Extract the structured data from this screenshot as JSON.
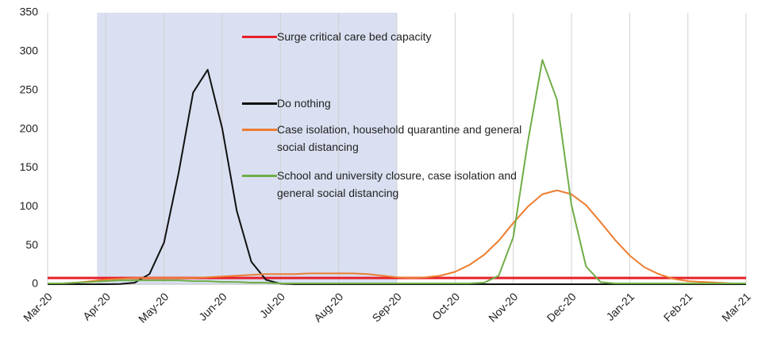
{
  "chart_data": {
    "type": "line",
    "x": [
      0,
      0.25,
      0.5,
      0.75,
      1,
      1.25,
      1.5,
      1.75,
      2,
      2.25,
      2.5,
      2.75,
      3,
      3.25,
      3.5,
      3.75,
      4,
      4.25,
      4.5,
      4.75,
      5,
      5.25,
      5.5,
      5.75,
      6,
      6.25,
      6.5,
      6.75,
      7,
      7.25,
      7.5,
      7.75,
      8,
      8.25,
      8.5,
      8.75,
      9,
      9.25,
      9.5,
      9.75,
      10,
      10.25,
      10.5,
      10.75,
      11,
      11.25,
      11.5,
      11.75,
      12
    ],
    "series": [
      {
        "name": "Surge critical care bed capacity",
        "color": "#e8202a",
        "values": [
          8,
          8,
          8,
          8,
          8,
          8,
          8,
          8,
          8,
          8,
          8,
          8,
          8,
          8,
          8,
          8,
          8,
          8,
          8,
          8,
          8,
          8,
          8,
          8,
          8,
          8,
          8,
          8,
          8,
          8,
          8,
          8,
          8,
          8,
          8,
          8,
          8,
          8,
          8,
          8,
          8,
          8,
          8,
          8,
          8,
          8,
          8,
          8,
          8
        ]
      },
      {
        "name": "Do nothing",
        "color": "#111111",
        "values": [
          0,
          0,
          0,
          0,
          0,
          0.2,
          2.1,
          13.1,
          53.8,
          143.3,
          247.1,
          276.5,
          200.7,
          94.5,
          28.9,
          5.7,
          0.7,
          0,
          0,
          0,
          0,
          0,
          0,
          0,
          0,
          0,
          0,
          0,
          0,
          0,
          0,
          0,
          0,
          0,
          0,
          0,
          0,
          0,
          0,
          0,
          0,
          0,
          0,
          0,
          0,
          0,
          0,
          0,
          0
        ]
      },
      {
        "name": "Case isolation, household quarantine and general social distancing",
        "color": "#ed7d31",
        "values": [
          1,
          1,
          2,
          4,
          6,
          7,
          8,
          8,
          8,
          8,
          8,
          9,
          10,
          11,
          12,
          13,
          13,
          13,
          14,
          14,
          14,
          14,
          13,
          11,
          9,
          8,
          9,
          11,
          16,
          25,
          38,
          56,
          79,
          100,
          116,
          121,
          116,
          102,
          80,
          57,
          37,
          22,
          13,
          7,
          4,
          3,
          2,
          1,
          1
        ]
      },
      {
        "name": "School and university closure, case isolation and general social distancing",
        "color": "#70ad47",
        "values": [
          1,
          1,
          2,
          3,
          4,
          5,
          5,
          5,
          5,
          5,
          4,
          4,
          3,
          3,
          2,
          2,
          1,
          1,
          1,
          1,
          1,
          1,
          1,
          1,
          1,
          1,
          1,
          1,
          1,
          1,
          2,
          11,
          60.7,
          183.4,
          289.2,
          238,
          102.1,
          22.9,
          2.7,
          1,
          1,
          1,
          1,
          1,
          1,
          1,
          1,
          1,
          1
        ]
      }
    ],
    "xlim": [
      0,
      12
    ],
    "xticks": [
      {
        "value": 0,
        "label": "Mar-20"
      },
      {
        "value": 1,
        "label": "Apr-20"
      },
      {
        "value": 2,
        "label": "May-20"
      },
      {
        "value": 3,
        "label": "Jun-20"
      },
      {
        "value": 4,
        "label": "Jul-20"
      },
      {
        "value": 5,
        "label": "Aug-20"
      },
      {
        "value": 6,
        "label": "Sep-20"
      },
      {
        "value": 7,
        "label": "Oct-20"
      },
      {
        "value": 8,
        "label": "Nov-20"
      },
      {
        "value": 9,
        "label": "Dec-20"
      },
      {
        "value": 10,
        "label": "Jan-21"
      },
      {
        "value": 11,
        "label": "Feb-21"
      },
      {
        "value": 12,
        "label": "Mar-21"
      }
    ],
    "ylim": [
      0,
      350
    ],
    "yticks": [
      0,
      50,
      100,
      150,
      200,
      250,
      300,
      350
    ],
    "shaded_region": [
      0.85,
      6.0
    ],
    "shaded_color": "#dae0f1",
    "grid": "x"
  }
}
